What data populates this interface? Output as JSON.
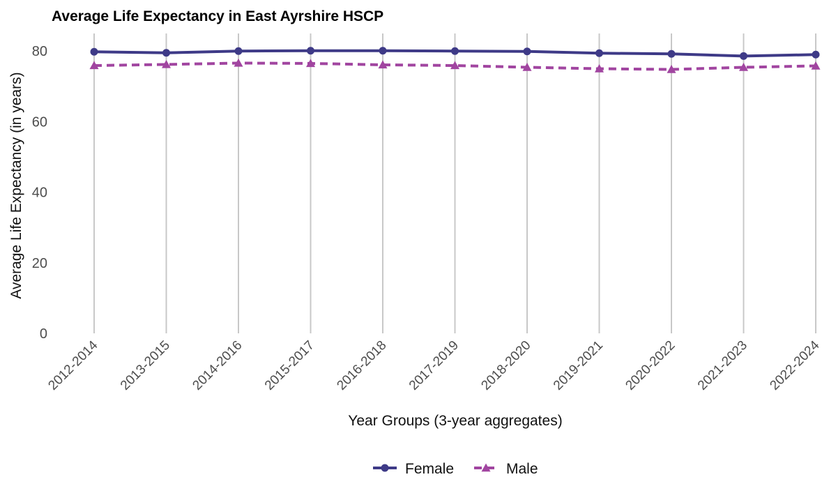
{
  "chart_data": {
    "type": "line",
    "title": "Average Life Expectancy in East Ayrshire HSCP",
    "xlabel": "Year Groups (3-year aggregates)",
    "ylabel": "Average Life Expectancy (in years)",
    "ylim": [
      0,
      84
    ],
    "yticks": [
      0,
      20,
      40,
      60,
      80
    ],
    "grid": "vertical",
    "legend_position": "bottom",
    "categories": [
      "2012-2014",
      "2013-2015",
      "2014-2016",
      "2015-2017",
      "2016-2018",
      "2017-2019",
      "2018-2020",
      "2019-2021",
      "2020-2022",
      "2021-2023",
      "2022-2024"
    ],
    "series": [
      {
        "name": "Female",
        "color": "#3e3a87",
        "marker": "circle",
        "line": "solid",
        "values": [
          79.8,
          79.5,
          80.0,
          80.1,
          80.1,
          80.0,
          79.9,
          79.4,
          79.2,
          78.6,
          79.0
        ]
      },
      {
        "name": "Male",
        "color": "#a145a0",
        "marker": "triangle",
        "line": "dashed",
        "values": [
          75.9,
          76.2,
          76.6,
          76.5,
          76.1,
          75.9,
          75.4,
          75.0,
          74.8,
          75.4,
          75.8
        ]
      }
    ]
  }
}
